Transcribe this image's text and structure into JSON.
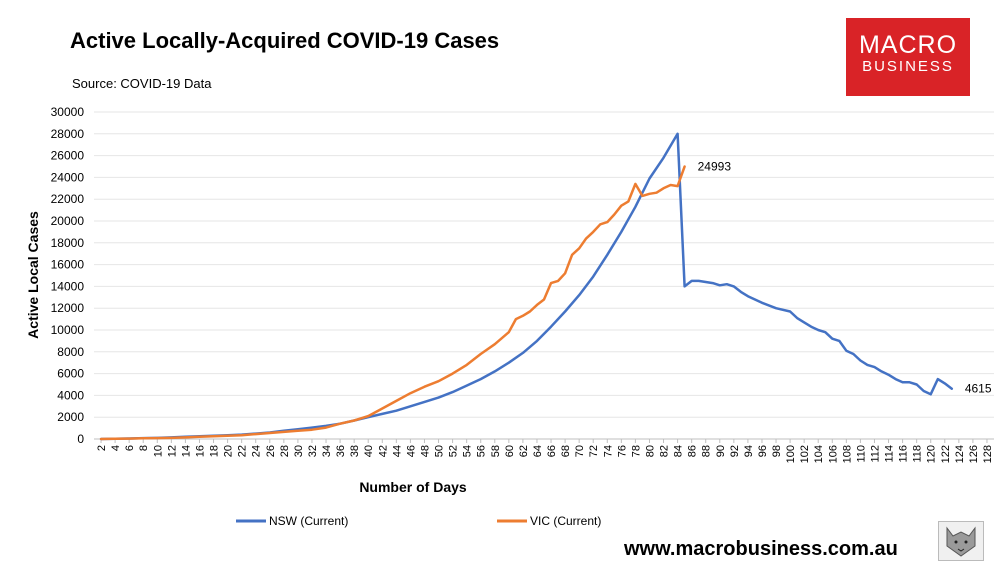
{
  "header": {
    "title": "Active Locally-Acquired COVID-19 Cases",
    "source": "Source: COVID-19 Data"
  },
  "logo": {
    "line1": "MACRO",
    "line2": "BUSINESS"
  },
  "footer": {
    "website": "www.macrobusiness.com.au"
  },
  "colors": {
    "nsw": "#4472c4",
    "vic": "#ed7d31",
    "logo_bg": "#d92327",
    "grid": "#e6e6e6"
  },
  "chart_data": {
    "type": "line",
    "title": "Active Locally-Acquired COVID-19 Cases",
    "xlabel": "Number of Days",
    "ylabel": "Active Local Cases",
    "xlim": [
      1,
      129
    ],
    "ylim": [
      0,
      30000
    ],
    "yticks": [
      0,
      2000,
      4000,
      6000,
      8000,
      10000,
      12000,
      14000,
      16000,
      18000,
      20000,
      22000,
      24000,
      26000,
      28000,
      30000
    ],
    "xticks": [
      2,
      4,
      6,
      8,
      10,
      12,
      14,
      16,
      18,
      20,
      22,
      24,
      26,
      28,
      30,
      32,
      34,
      36,
      38,
      40,
      42,
      44,
      46,
      48,
      50,
      52,
      54,
      56,
      58,
      60,
      62,
      64,
      66,
      68,
      70,
      72,
      74,
      76,
      78,
      80,
      82,
      84,
      86,
      88,
      90,
      92,
      94,
      96,
      98,
      100,
      102,
      104,
      106,
      108,
      110,
      112,
      114,
      116,
      118,
      120,
      122,
      124,
      126,
      128
    ],
    "grid": "horizontal",
    "legend": "bottom",
    "series": [
      {
        "name": "NSW (Current)",
        "x": [
          2,
          4,
          6,
          8,
          10,
          12,
          14,
          16,
          18,
          20,
          22,
          24,
          26,
          28,
          30,
          32,
          34,
          36,
          38,
          40,
          42,
          44,
          46,
          48,
          50,
          52,
          54,
          56,
          58,
          60,
          62,
          64,
          66,
          68,
          70,
          72,
          74,
          76,
          78,
          80,
          82,
          84,
          85,
          86,
          87,
          88,
          89,
          90,
          91,
          92,
          93,
          94,
          96,
          98,
          100,
          101,
          102,
          103,
          104,
          105,
          106,
          107,
          108,
          109,
          110,
          111,
          112,
          113,
          114,
          115,
          116,
          117,
          118,
          119,
          120,
          121,
          122,
          123
        ],
        "values": [
          0,
          20,
          50,
          80,
          100,
          150,
          200,
          250,
          300,
          350,
          400,
          500,
          600,
          750,
          900,
          1050,
          1200,
          1400,
          1700,
          2000,
          2300,
          2600,
          3000,
          3400,
          3800,
          4300,
          4900,
          5500,
          6200,
          7000,
          7900,
          9000,
          10300,
          11700,
          13200,
          14900,
          16900,
          19000,
          21300,
          23900,
          25800,
          28000,
          14000,
          14500,
          14500,
          14400,
          14300,
          14100,
          14200,
          14000,
          13500,
          13100,
          12500,
          12000,
          11700,
          11100,
          10700,
          10300,
          10000,
          9800,
          9200,
          9000,
          8100,
          7800,
          7200,
          6800,
          6600,
          6200,
          5900,
          5500,
          5200,
          5200,
          5000,
          4400,
          4100,
          5500,
          5100,
          4615
        ]
      },
      {
        "name": "VIC (Current)",
        "x": [
          2,
          4,
          6,
          8,
          10,
          12,
          14,
          16,
          18,
          20,
          22,
          24,
          26,
          28,
          30,
          32,
          34,
          36,
          38,
          40,
          42,
          44,
          46,
          48,
          50,
          52,
          54,
          56,
          58,
          60,
          61,
          62,
          63,
          64,
          65,
          66,
          67,
          68,
          69,
          70,
          71,
          72,
          73,
          74,
          75,
          76,
          77,
          78,
          79,
          80,
          81,
          82,
          83,
          84,
          85
        ],
        "values": [
          0,
          20,
          40,
          60,
          80,
          100,
          150,
          200,
          250,
          300,
          350,
          450,
          550,
          650,
          750,
          850,
          1050,
          1400,
          1700,
          2100,
          2800,
          3500,
          4200,
          4800,
          5300,
          6000,
          6800,
          7800,
          8700,
          9800,
          11000,
          11300,
          11700,
          12300,
          12800,
          14300,
          14500,
          15200,
          16900,
          17500,
          18400,
          19000,
          19700,
          19900,
          20600,
          21400,
          21800,
          23400,
          22300,
          22500,
          22600,
          23000,
          23300,
          23200,
          24993
        ]
      }
    ],
    "annotations": [
      {
        "series": "VIC (Current)",
        "x": 85,
        "label": "24993"
      },
      {
        "series": "NSW (Current)",
        "x": 123,
        "label": "4615"
      }
    ]
  }
}
